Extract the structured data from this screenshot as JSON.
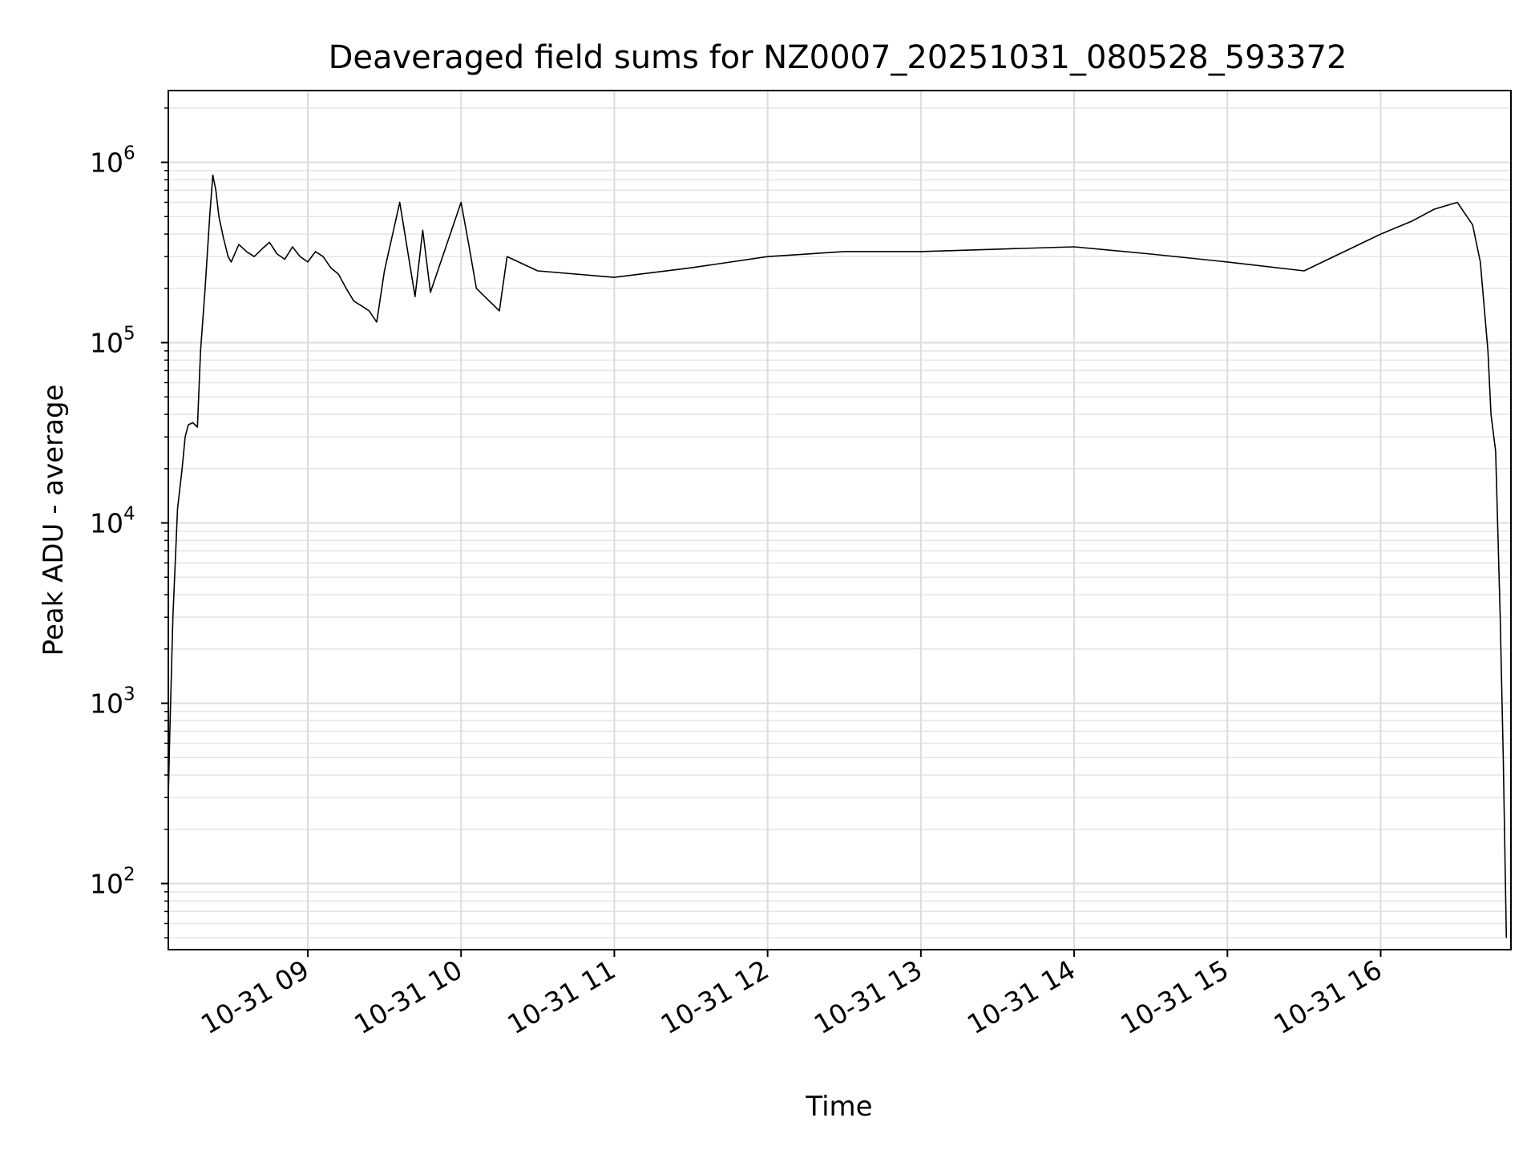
{
  "chart_data": {
    "type": "line",
    "title": "Deaveraged field sums for NZ0007_20251031_080528_593372",
    "xlabel": "Time",
    "ylabel": "Peak ADU - average",
    "yscale": "log",
    "ylim": [
      43,
      2500000
    ],
    "xlim_hours": [
      8.09,
      16.85
    ],
    "grid": true,
    "line_color": "#000000",
    "x_ticks": [
      {
        "hour": 9,
        "label": "10-31 09"
      },
      {
        "hour": 10,
        "label": "10-31 10"
      },
      {
        "hour": 11,
        "label": "10-31 11"
      },
      {
        "hour": 12,
        "label": "10-31 12"
      },
      {
        "hour": 13,
        "label": "10-31 13"
      },
      {
        "hour": 14,
        "label": "10-31 14"
      },
      {
        "hour": 15,
        "label": "10-31 15"
      },
      {
        "hour": 16,
        "label": "10-31 16"
      }
    ],
    "y_ticks": [
      {
        "value": 100,
        "base": "10",
        "exp": "2"
      },
      {
        "value": 1000,
        "base": "10",
        "exp": "3"
      },
      {
        "value": 10000,
        "base": "10",
        "exp": "4"
      },
      {
        "value": 100000,
        "base": "10",
        "exp": "5"
      },
      {
        "value": 1000000,
        "base": "10",
        "exp": "6"
      }
    ],
    "series": [
      {
        "name": "Peak ADU - average",
        "x_hours": [
          8.09,
          8.1,
          8.12,
          8.15,
          8.18,
          8.2,
          8.22,
          8.25,
          8.28,
          8.3,
          8.33,
          8.36,
          8.38,
          8.4,
          8.42,
          8.45,
          8.48,
          8.5,
          8.55,
          8.6,
          8.65,
          8.7,
          8.75,
          8.8,
          8.85,
          8.9,
          8.95,
          9.0,
          9.05,
          9.1,
          9.15,
          9.2,
          9.25,
          9.3,
          9.35,
          9.4,
          9.45,
          9.5,
          9.6,
          9.7,
          9.75,
          9.8,
          10.0,
          10.05,
          10.1,
          10.25,
          10.3,
          10.5,
          11.0,
          11.5,
          12.0,
          12.5,
          13.0,
          13.5,
          14.0,
          14.5,
          15.0,
          15.5,
          16.0,
          16.2,
          16.35,
          16.5,
          16.6,
          16.65,
          16.7,
          16.72,
          16.75,
          16.78,
          16.8,
          16.82
        ],
        "values": [
          300,
          700,
          3000,
          12000,
          20000,
          30000,
          35000,
          36000,
          34000,
          90000,
          200000,
          500000,
          850000,
          700000,
          500000,
          380000,
          300000,
          280000,
          350000,
          320000,
          300000,
          330000,
          360000,
          310000,
          290000,
          340000,
          300000,
          280000,
          320000,
          300000,
          260000,
          240000,
          200000,
          170000,
          160000,
          150000,
          130000,
          250000,
          600000,
          180000,
          420000,
          190000,
          600000,
          350000,
          200000,
          150000,
          300000,
          250000,
          230000,
          260000,
          300000,
          320000,
          320000,
          330000,
          340000,
          310000,
          280000,
          250000,
          400000,
          470000,
          550000,
          600000,
          450000,
          280000,
          90000,
          40000,
          25000,
          3000,
          500,
          50
        ]
      }
    ]
  }
}
